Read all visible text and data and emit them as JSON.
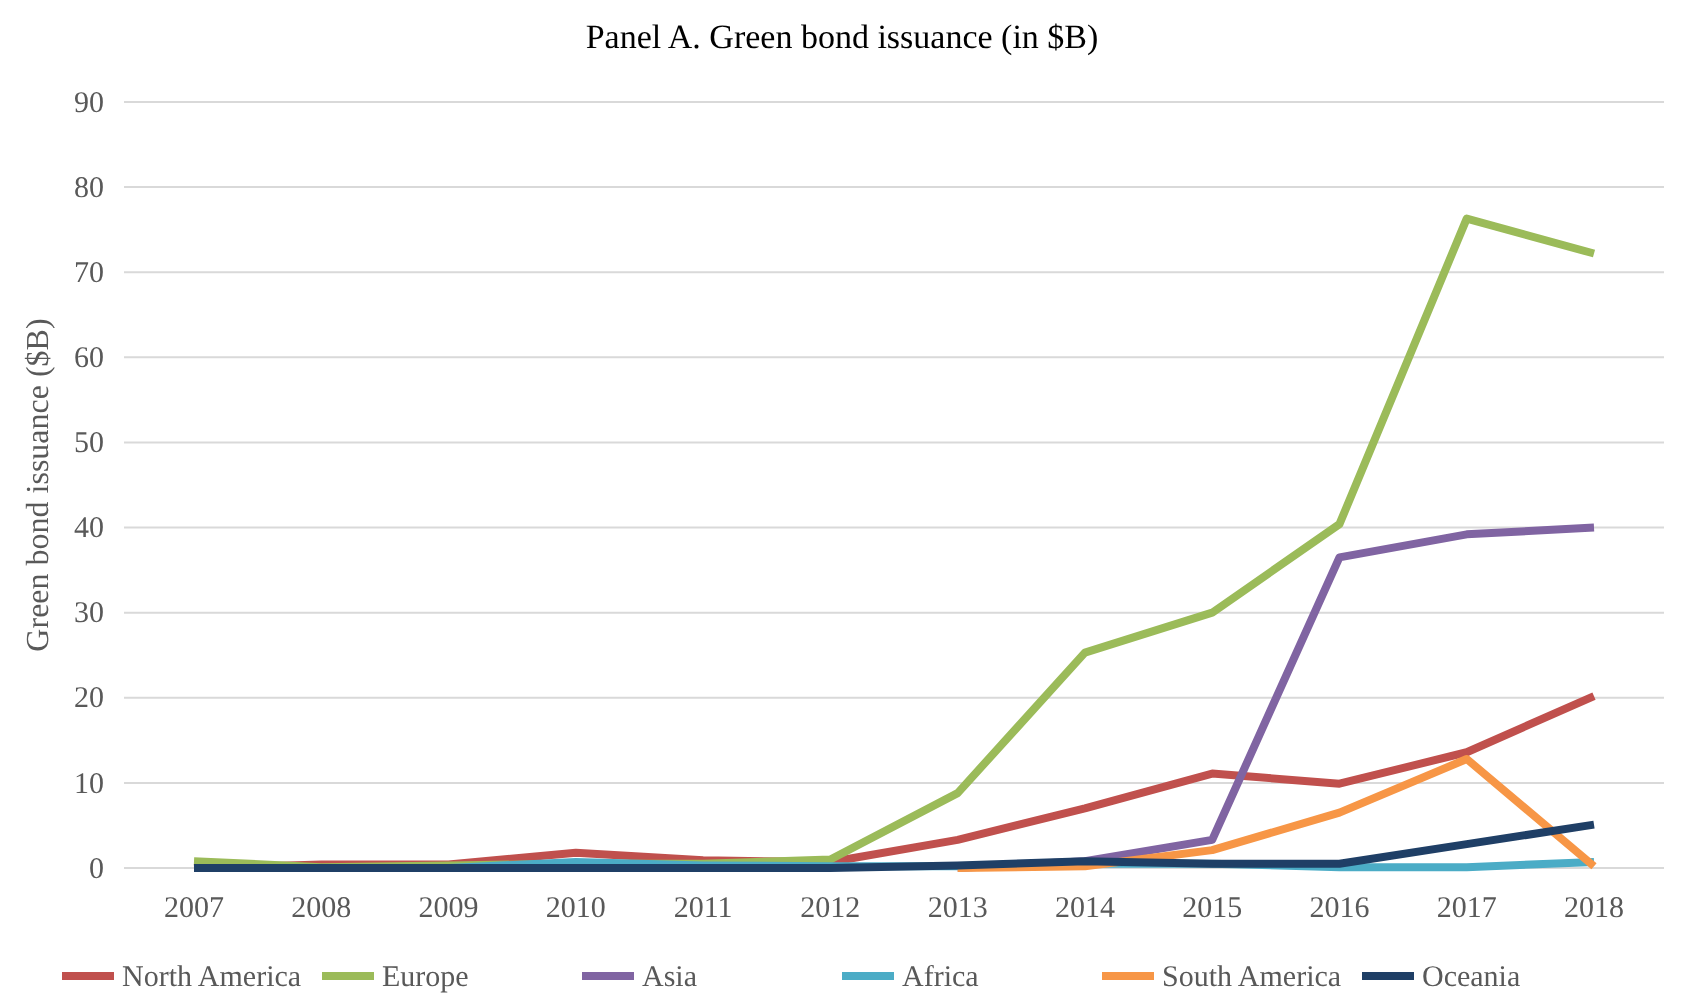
{
  "chart_data": {
    "type": "line",
    "title": "Panel A. Green bond issuance (in $B)",
    "ylabel": "Green bond issuance ($B)",
    "categories": [
      "2007",
      "2008",
      "2009",
      "2010",
      "2011",
      "2012",
      "2013",
      "2014",
      "2015",
      "2016",
      "2017",
      "2018"
    ],
    "series": [
      {
        "name": "North America",
        "color": "#c0504d",
        "values": [
          0,
          0.4,
          0.4,
          1.8,
          0.9,
          0.7,
          3.3,
          7,
          11.1,
          9.9,
          13.6,
          20.2
        ]
      },
      {
        "name": "Europe",
        "color": "#9bbb59",
        "values": [
          0.8,
          0.1,
          0.3,
          0.5,
          0.5,
          1.0,
          8.8,
          25.3,
          30,
          40.4,
          76.3,
          72.2
        ]
      },
      {
        "name": "Asia",
        "color": "#8064a2",
        "values": [
          null,
          null,
          null,
          null,
          null,
          null,
          0,
          0.8,
          3.3,
          36.5,
          39.2,
          40
        ]
      },
      {
        "name": "Africa",
        "color": "#4bacc6",
        "values": [
          0,
          0,
          0,
          0.7,
          0.3,
          0.2,
          0.2,
          0.5,
          0.5,
          0.1,
          0.1,
          0.7
        ]
      },
      {
        "name": "South America",
        "color": "#f79646",
        "values": [
          null,
          null,
          null,
          null,
          null,
          null,
          0,
          0.2,
          2.1,
          6.5,
          12.8,
          0.2
        ]
      },
      {
        "name": "Oceania",
        "color": "#1f3f66",
        "values": [
          0,
          0,
          0,
          0,
          0,
          0,
          0.3,
          0.8,
          0.5,
          0.5,
          2.8,
          5.1
        ]
      }
    ],
    "ylim": [
      0,
      90
    ],
    "yticks": [
      0,
      10,
      20,
      30,
      40,
      50,
      60,
      70,
      80,
      90
    ],
    "grid": "y",
    "legend": "bottom",
    "marker": "none",
    "line_style": "solid"
  }
}
